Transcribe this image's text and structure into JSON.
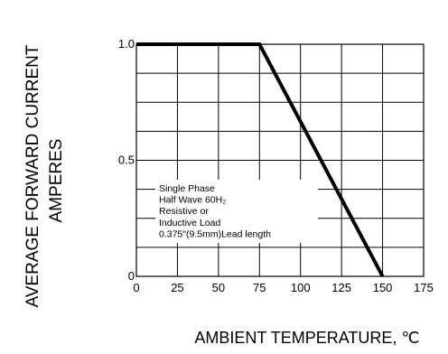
{
  "chart_data": {
    "type": "line",
    "ylabel_line1": "AVERAGE FORWARD CURRENT",
    "ylabel_line2": "AMPERES",
    "xlabel": "AMBIENT TEMPERATURE, ℃",
    "xlim": [
      0,
      175
    ],
    "ylim": [
      0,
      1.0
    ],
    "x_ticks": [
      "0",
      "25",
      "50",
      "75",
      "100",
      "125",
      "150",
      "175"
    ],
    "y_ticks": [
      {
        "value": 1.0,
        "label": "1.0"
      },
      {
        "value": 0.5,
        "label": "0.5"
      },
      {
        "value": 0,
        "label": "0"
      }
    ],
    "grid": true,
    "grid_x_step": 25,
    "grid_y_step": 0.125,
    "series": [
      {
        "x": [
          0,
          75,
          150
        ],
        "y": [
          1.0,
          1.0,
          0
        ]
      }
    ],
    "annotation": [
      "Single Phase",
      "Half Wave 60H₂",
      "Resistive or",
      "Inductive Load",
      "0.375\"(9.5mm)Lead length"
    ]
  }
}
